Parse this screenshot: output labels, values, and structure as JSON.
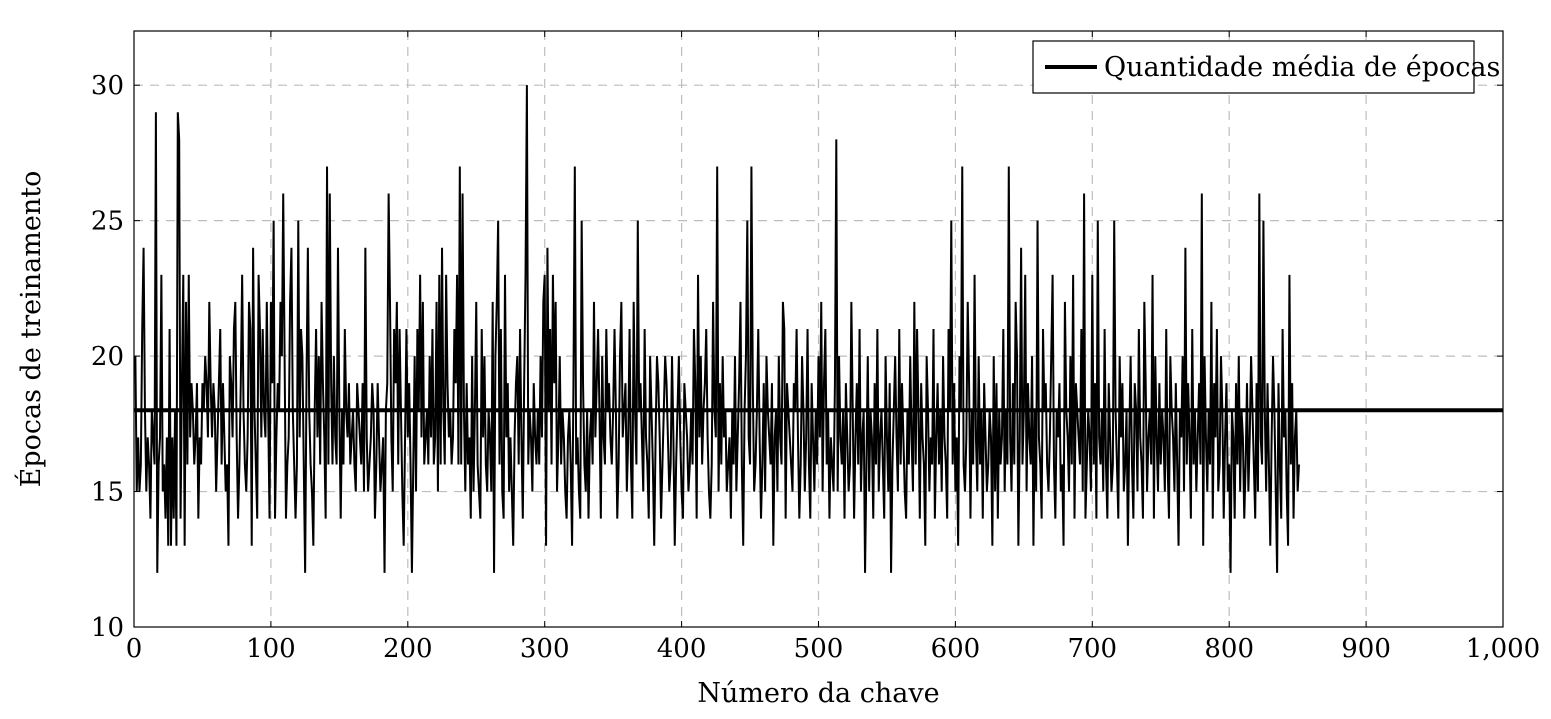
{
  "chart_data": {
    "type": "line",
    "xlabel": "Número da chave",
    "ylabel": "Épocas de treinamento",
    "xlim": [
      0,
      1000
    ],
    "ylim": [
      10,
      32
    ],
    "x_ticks": [
      0,
      100,
      200,
      300,
      400,
      500,
      600,
      700,
      800,
      900,
      1000
    ],
    "x_tick_labels": [
      "0",
      "100",
      "200",
      "300",
      "400",
      "500",
      "600",
      "700",
      "800",
      "900",
      "1,000"
    ],
    "y_ticks": [
      10,
      15,
      20,
      25,
      30
    ],
    "y_tick_labels": [
      "10",
      "15",
      "20",
      "25",
      "30"
    ],
    "grid": true,
    "legend_position": "top-right",
    "colors": {
      "series": "#000000",
      "grid": "#bdbdbd",
      "background": "#ffffff"
    },
    "series": [
      {
        "name": "",
        "x_start": 1,
        "x_step": 1,
        "values": [
          20,
          15,
          17,
          15,
          16,
          21,
          24,
          18,
          15,
          17,
          16,
          14,
          18,
          17,
          16,
          29,
          12,
          16,
          17,
          23,
          15,
          16,
          14,
          17,
          13,
          21,
          13,
          17,
          14,
          18,
          13,
          29,
          28,
          14,
          19,
          23,
          13,
          22,
          16,
          23,
          17,
          19,
          18,
          16,
          17,
          19,
          14,
          17,
          16,
          19,
          18,
          20,
          19,
          17,
          22,
          19,
          17,
          19,
          18,
          15,
          17,
          19,
          21,
          16,
          19,
          17,
          15,
          16,
          13,
          20,
          19,
          17,
          21,
          22,
          17,
          14,
          16,
          19,
          23,
          18,
          16,
          15,
          17,
          22,
          21,
          13,
          24,
          18,
          16,
          14,
          23,
          21,
          17,
          21,
          18,
          17,
          22,
          18,
          14,
          22,
          19,
          25,
          14,
          17,
          19,
          18,
          22,
          20,
          26,
          20,
          14,
          16,
          17,
          22,
          24,
          18,
          16,
          14,
          16,
          25,
          17,
          21,
          20,
          16,
          12,
          19,
          24,
          18,
          16,
          15,
          13,
          18,
          21,
          17,
          20,
          16,
          22,
          19,
          17,
          14,
          27,
          16,
          26,
          19,
          16,
          20,
          17,
          16,
          24,
          18,
          14,
          18,
          16,
          21,
          18,
          17,
          19,
          16,
          17,
          18,
          16,
          15,
          19,
          18,
          17,
          16,
          19,
          15,
          24,
          17,
          15,
          16,
          17,
          19,
          18,
          14,
          16,
          19,
          17,
          15,
          16,
          17,
          12,
          18,
          19,
          26,
          22,
          17,
          15,
          21,
          19,
          22,
          16,
          21,
          18,
          15,
          13,
          17,
          21,
          17,
          19,
          16,
          12,
          16,
          20,
          15,
          21,
          18,
          23,
          17,
          22,
          16,
          17,
          18,
          16,
          20,
          17,
          21,
          16,
          17,
          22,
          15,
          23,
          16,
          24,
          18,
          16,
          23,
          19,
          17,
          18,
          16,
          17,
          21,
          19,
          23,
          16,
          27,
          16,
          26,
          18,
          15,
          19,
          16,
          17,
          14,
          20,
          15,
          18,
          22,
          16,
          15,
          14,
          21,
          17,
          20,
          16,
          15,
          18,
          17,
          15,
          22,
          12,
          20,
          22,
          25,
          16,
          21,
          15,
          14,
          23,
          17,
          19,
          15,
          17,
          15,
          13,
          17,
          19,
          20,
          16,
          21,
          17,
          14,
          19,
          23,
          30,
          16,
          18,
          17,
          15,
          19,
          17,
          16,
          18,
          16,
          20,
          17,
          22,
          23,
          13,
          24,
          18,
          21,
          16,
          23,
          19,
          22,
          15,
          17,
          20,
          16,
          18,
          17,
          15,
          14,
          17,
          18,
          16,
          13,
          19,
          27,
          16,
          17,
          15,
          14,
          25,
          19,
          16,
          15,
          18,
          14,
          17,
          18,
          16,
          22,
          17,
          19,
          21,
          18,
          14,
          20,
          17,
          16,
          21,
          18,
          19,
          17,
          16,
          18,
          21,
          18,
          14,
          16,
          20,
          22,
          17,
          18,
          19,
          15,
          17,
          21,
          16,
          14,
          22,
          18,
          16,
          25,
          18,
          19,
          17,
          15,
          21,
          17,
          16,
          14,
          20,
          18,
          16,
          13,
          17,
          20,
          19,
          17,
          14,
          16,
          18,
          20,
          19,
          17,
          15,
          16,
          20,
          17,
          13,
          16,
          18,
          20,
          17,
          15,
          14,
          19,
          18,
          17,
          15,
          16,
          18,
          16,
          21,
          19,
          14,
          23,
          17,
          20,
          16,
          18,
          19,
          21,
          17,
          15,
          14,
          16,
          22,
          18,
          17,
          27,
          15,
          19,
          16,
          20,
          17,
          18,
          15,
          16,
          17,
          14,
          18,
          16,
          20,
          15,
          17,
          19,
          22,
          16,
          13,
          18,
          20,
          25,
          17,
          16,
          27,
          19,
          15,
          16,
          18,
          21,
          17,
          14,
          16,
          19,
          15,
          20,
          18,
          17,
          16,
          19,
          13,
          17,
          18,
          15,
          20,
          17,
          16,
          22,
          21,
          14,
          19,
          18,
          17,
          16,
          15,
          19,
          18,
          21,
          17,
          14,
          16,
          20,
          18,
          15,
          17,
          21,
          16,
          14,
          19,
          17,
          15,
          18,
          16,
          20,
          17,
          22,
          15,
          19,
          21,
          16,
          18,
          14,
          17,
          16,
          15,
          19,
          28,
          15,
          20,
          17,
          16,
          18,
          14,
          19,
          17,
          15,
          16,
          22,
          18,
          14,
          17,
          19,
          16,
          21,
          15,
          17,
          18,
          12,
          16,
          20,
          15,
          18,
          17,
          14,
          19,
          16,
          21,
          15,
          17,
          18,
          16,
          14,
          20,
          17,
          15,
          19,
          12,
          16,
          18,
          20,
          17,
          15,
          21,
          16,
          19,
          17,
          15,
          14,
          18,
          16,
          20,
          17,
          15,
          22,
          16,
          21,
          18,
          14,
          19,
          17,
          16,
          13,
          20,
          18,
          15,
          17,
          16,
          21,
          14,
          17,
          19,
          16,
          18,
          15,
          20,
          17,
          16,
          14,
          21,
          18,
          25,
          16,
          19,
          15,
          17,
          13,
          20,
          18,
          27,
          16,
          15,
          17,
          22,
          19,
          14,
          18,
          16,
          23,
          17,
          15,
          20,
          16,
          18,
          14,
          19,
          17,
          15,
          16,
          18,
          17,
          13,
          20,
          15,
          19,
          14,
          18,
          16,
          17,
          21,
          15,
          18,
          16,
          27,
          17,
          15,
          19,
          16,
          22,
          20,
          13,
          17,
          24,
          16,
          18,
          23,
          15,
          19,
          17,
          16,
          20,
          13,
          18,
          15,
          25,
          17,
          16,
          14,
          21,
          18,
          19,
          16,
          15,
          17,
          20,
          23,
          16,
          14,
          18,
          17,
          19,
          15,
          16,
          13,
          22,
          18,
          17,
          15,
          20,
          16,
          23,
          14,
          19,
          18,
          17,
          16,
          21,
          15,
          26,
          14,
          16,
          18,
          17,
          15,
          23,
          16,
          19,
          14,
          25,
          17,
          16,
          18,
          15,
          21,
          16,
          14,
          19,
          17,
          15,
          16,
          25,
          18,
          16,
          14,
          20,
          17,
          19,
          15,
          16,
          18,
          13,
          17,
          20,
          16,
          14,
          19,
          18,
          15,
          21,
          17,
          16,
          14,
          22,
          19,
          15,
          17,
          18,
          16,
          23,
          14,
          20,
          17,
          15,
          19,
          16,
          18,
          17,
          15,
          21,
          16,
          14,
          20,
          18,
          17,
          15,
          19,
          16,
          13,
          18,
          17,
          20,
          15,
          24,
          16,
          19,
          17,
          14,
          21,
          16,
          18,
          15,
          17,
          19,
          16,
          26,
          13,
          20,
          17,
          15,
          18,
          16,
          22,
          14,
          19,
          17,
          21,
          15,
          16,
          20,
          18,
          14,
          17,
          19,
          15,
          16,
          12,
          18,
          17,
          14,
          19,
          16,
          20,
          15,
          18,
          17,
          14,
          16,
          19,
          15,
          17,
          20,
          18,
          16,
          14,
          19,
          15,
          26,
          17,
          16,
          25,
          18,
          15,
          19,
          16,
          13,
          17,
          20,
          18,
          15,
          12,
          19,
          16,
          14,
          21,
          17,
          18,
          15,
          13,
          23,
          16,
          19,
          14,
          17,
          18,
          15,
          16
        ],
        "mean": 18,
        "mean_name": "Quantidade média de épocas"
      }
    ]
  }
}
